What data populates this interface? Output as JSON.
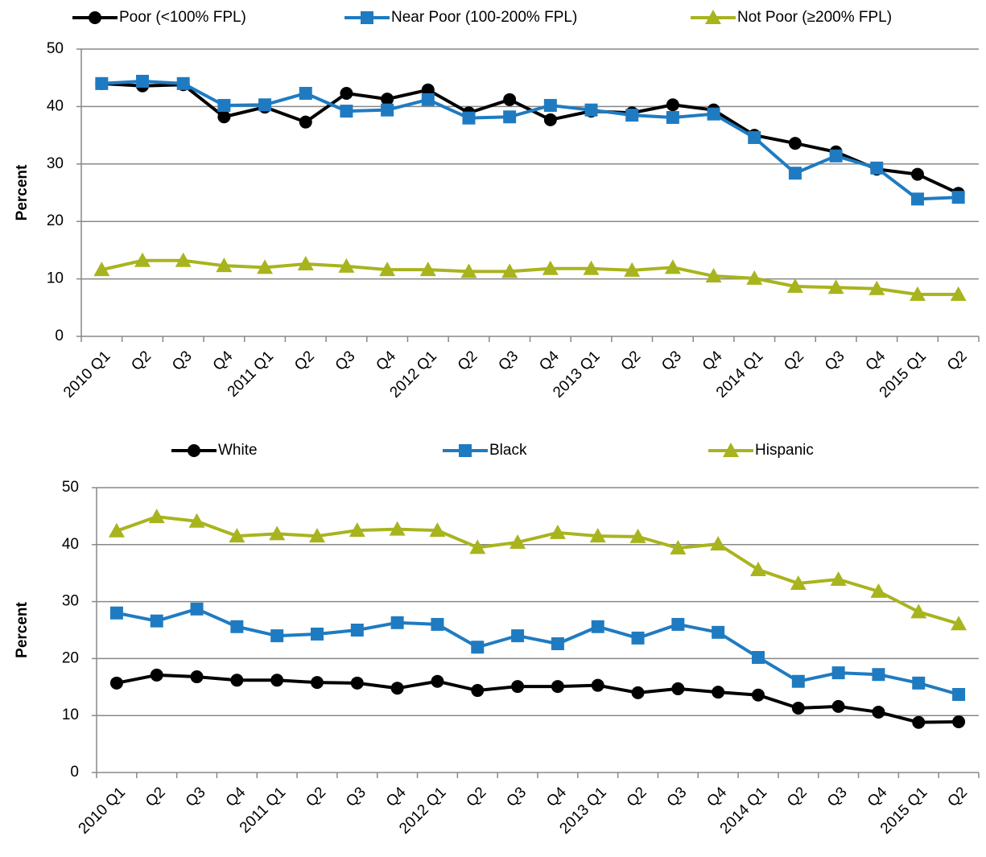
{
  "chart_data": [
    {
      "type": "line",
      "ylabel": "Percent",
      "categories": [
        "2010 Q1",
        "Q2",
        "Q3",
        "Q4",
        "2011 Q1",
        "Q2",
        "Q3",
        "Q4",
        "2012 Q1",
        "Q2",
        "Q3",
        "Q4",
        "2013 Q1",
        "Q2",
        "Q3",
        "Q4",
        "2014 Q1",
        "Q2",
        "Q3",
        "Q4",
        "2015 Q1",
        "Q2"
      ],
      "series": [
        {
          "name": "Poor (<100% FPL)",
          "color": "#000000",
          "marker": "circle",
          "values": [
            44.0,
            43.6,
            43.8,
            38.2,
            39.9,
            37.3,
            42.3,
            41.3,
            42.9,
            38.9,
            41.2,
            37.7,
            39.2,
            38.9,
            40.3,
            39.4,
            35.0,
            33.6,
            32.1,
            29.1,
            28.2,
            24.9
          ]
        },
        {
          "name": "Near Poor (100-200% FPL)",
          "color": "#1f7bc1",
          "marker": "square",
          "values": [
            44.0,
            44.4,
            44.0,
            40.2,
            40.3,
            42.3,
            39.2,
            39.4,
            41.2,
            38.0,
            38.2,
            40.2,
            39.4,
            38.5,
            38.1,
            38.7,
            34.6,
            28.4,
            31.4,
            29.3,
            23.9,
            24.2
          ]
        },
        {
          "name": "Not Poor (≥200% FPL)",
          "color": "#a8b41e",
          "marker": "triangle",
          "values": [
            11.6,
            13.2,
            13.2,
            12.3,
            12.0,
            12.6,
            12.2,
            11.6,
            11.6,
            11.3,
            11.3,
            11.8,
            11.8,
            11.5,
            12.0,
            10.5,
            10.1,
            8.7,
            8.5,
            8.3,
            7.3,
            7.3
          ]
        }
      ],
      "ylim": [
        0,
        50
      ],
      "yticks": [
        0,
        10,
        20,
        30,
        40,
        50
      ],
      "grid": true
    },
    {
      "type": "line",
      "ylabel": "Percent",
      "categories": [
        "2010 Q1",
        "Q2",
        "Q3",
        "Q4",
        "2011 Q1",
        "Q2",
        "Q3",
        "Q4",
        "2012 Q1",
        "Q2",
        "Q3",
        "Q4",
        "2013 Q1",
        "Q2",
        "Q3",
        "Q4",
        "2014 Q1",
        "Q2",
        "Q3",
        "Q4",
        "2015 Q1",
        "Q2"
      ],
      "series": [
        {
          "name": "White",
          "color": "#000000",
          "marker": "circle",
          "values": [
            15.7,
            17.1,
            16.8,
            16.2,
            16.2,
            15.8,
            15.7,
            14.8,
            16.0,
            14.4,
            15.1,
            15.1,
            15.3,
            14.0,
            14.7,
            14.1,
            13.6,
            11.3,
            11.6,
            10.6,
            8.8,
            8.9
          ]
        },
        {
          "name": "Black",
          "color": "#1f7bc1",
          "marker": "square",
          "values": [
            28.0,
            26.6,
            28.7,
            25.6,
            24.0,
            24.3,
            25.0,
            26.3,
            26.0,
            22.0,
            24.0,
            22.6,
            25.6,
            23.6,
            26.0,
            24.6,
            20.2,
            16.0,
            17.5,
            17.2,
            15.7,
            13.7
          ]
        },
        {
          "name": "Hispanic",
          "color": "#a8b41e",
          "marker": "triangle",
          "values": [
            42.4,
            44.9,
            44.1,
            41.5,
            41.9,
            41.5,
            42.5,
            42.7,
            42.5,
            39.5,
            40.4,
            42.1,
            41.5,
            41.4,
            39.4,
            40.1,
            35.6,
            33.2,
            33.9,
            31.8,
            28.2,
            26.1
          ]
        }
      ],
      "ylim": [
        0,
        50
      ],
      "yticks": [
        0,
        10,
        20,
        30,
        40,
        50
      ],
      "grid": true
    }
  ]
}
